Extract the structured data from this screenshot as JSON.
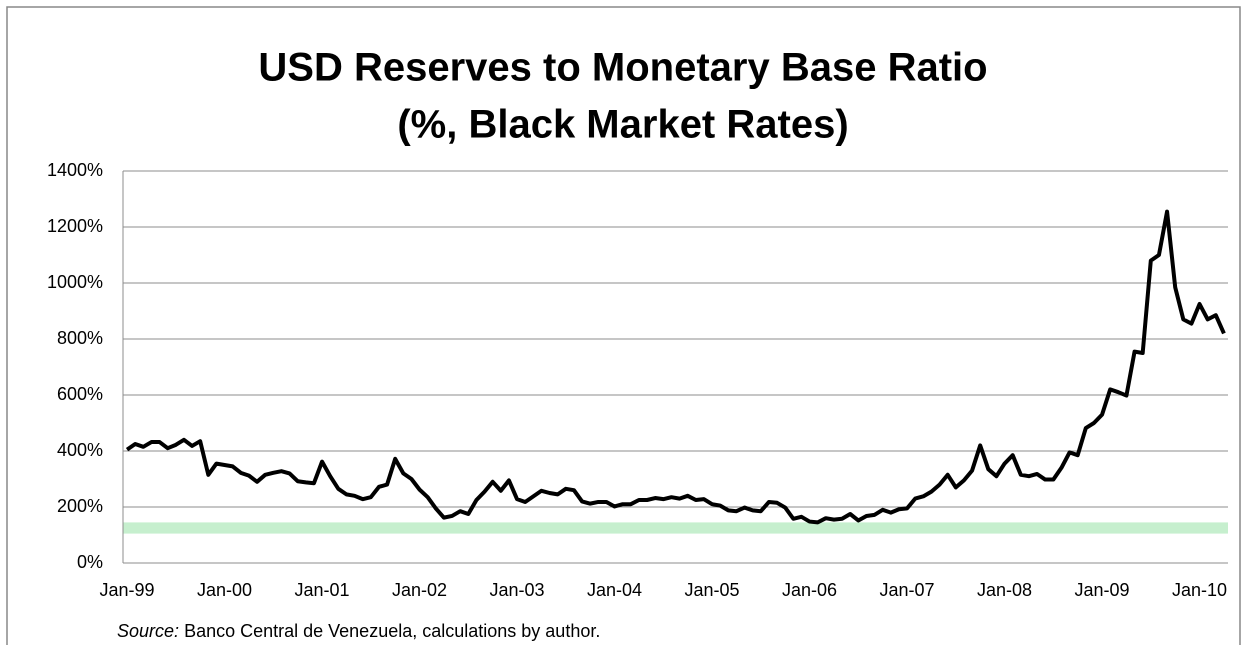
{
  "chart_data": {
    "type": "line",
    "title": [
      "USD Reserves to Monetary Base Ratio",
      "(%, Black Market Rates)"
    ],
    "source_label": "Source:",
    "source": "Banco Central de Venezuela, calculations by author.",
    "categories": [
      "Jan-99",
      null,
      null,
      null,
      null,
      null,
      null,
      null,
      null,
      null,
      null,
      null,
      "Jan-00",
      null,
      null,
      null,
      null,
      null,
      null,
      null,
      null,
      null,
      null,
      null,
      "Jan-01",
      null,
      null,
      null,
      null,
      null,
      null,
      null,
      null,
      null,
      null,
      null,
      "Jan-02",
      null,
      null,
      null,
      null,
      null,
      null,
      null,
      null,
      null,
      null,
      null,
      "Jan-03",
      null,
      null,
      null,
      null,
      null,
      null,
      null,
      null,
      null,
      null,
      null,
      "Jan-04",
      null,
      null,
      null,
      null,
      null,
      null,
      null,
      null,
      null,
      null,
      null,
      "Jan-05",
      null,
      null,
      null,
      null,
      null,
      null,
      null,
      null,
      null,
      null,
      null,
      "Jan-06",
      null,
      null,
      null,
      null,
      null,
      null,
      null,
      null,
      null,
      null,
      null,
      "Jan-07",
      null,
      null,
      null,
      null,
      null,
      null,
      null,
      null,
      null,
      null,
      null,
      "Jan-08",
      null,
      null,
      null,
      null,
      null,
      null,
      null,
      null,
      null,
      null,
      null,
      "Jan-09",
      null,
      null,
      null,
      null,
      null,
      null,
      null,
      null,
      null,
      null,
      null,
      "Jan-10",
      null,
      null,
      null
    ],
    "values": [
      405,
      425,
      415,
      432,
      432,
      410,
      422,
      440,
      418,
      435,
      315,
      355,
      350,
      345,
      322,
      312,
      290,
      315,
      322,
      328,
      320,
      292,
      288,
      285,
      362,
      310,
      265,
      245,
      240,
      228,
      235,
      272,
      280,
      372,
      320,
      300,
      262,
      235,
      195,
      162,
      168,
      185,
      175,
      225,
      255,
      290,
      258,
      295,
      228,
      218,
      238,
      258,
      250,
      245,
      265,
      260,
      220,
      212,
      218,
      218,
      202,
      210,
      210,
      225,
      225,
      232,
      228,
      235,
      230,
      240,
      225,
      228,
      210,
      205,
      188,
      185,
      198,
      188,
      185,
      218,
      215,
      198,
      158,
      165,
      148,
      145,
      160,
      155,
      158,
      175,
      152,
      168,
      172,
      190,
      180,
      192,
      195,
      230,
      238,
      255,
      280,
      315,
      270,
      295,
      330,
      420,
      335,
      310,
      355,
      385,
      315,
      310,
      318,
      298,
      298,
      340,
      395,
      385,
      482,
      500,
      530,
      620,
      610,
      598,
      755,
      750,
      1080,
      1100,
      1255,
      985,
      870,
      855,
      925,
      870,
      885,
      820
    ],
    "color": "#000000",
    "band": {
      "ymin": 105,
      "ymax": 145,
      "color": "#c6efce"
    },
    "ylim": [
      0,
      1400
    ],
    "yticks": [
      {
        "value": 0,
        "label": "0%"
      },
      {
        "value": 200,
        "label": "200%"
      },
      {
        "value": 400,
        "label": "400%"
      },
      {
        "value": 600,
        "label": "600%"
      },
      {
        "value": 800,
        "label": "800%"
      },
      {
        "value": 1000,
        "label": "1000%"
      },
      {
        "value": 1200,
        "label": "1200%"
      },
      {
        "value": 1400,
        "label": "1400%"
      }
    ],
    "grid": true
  }
}
